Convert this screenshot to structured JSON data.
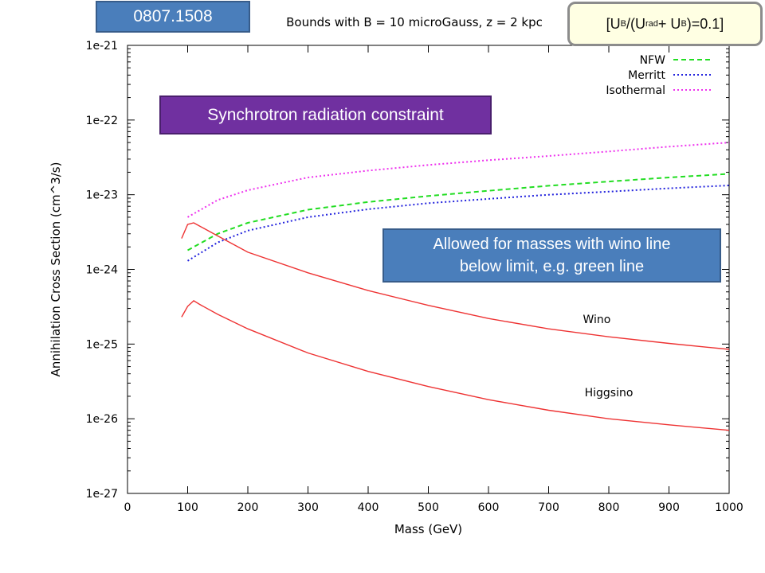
{
  "annotations": {
    "arxiv_id": "0807.1508",
    "energy_ratio": {
      "open": "[U",
      "sub_b": "B",
      "mid": " /(U",
      "sub_rad": "rad",
      "plus": " + U",
      "sub_b2": "B",
      "close": " )=0.1]"
    },
    "synchrotron_label": "Synchrotron radiation constraint",
    "allowed_line1": "Allowed for masses with wino line",
    "allowed_line2": "below limit, e.g. green line"
  },
  "chart_data": {
    "type": "line",
    "title": "Bounds with B = 10 microGauss, z = 2 kpc",
    "xlabel": "Mass (GeV)",
    "ylabel": "Annihilation Cross Section (cm^3/s)",
    "xlim": [
      0,
      1000
    ],
    "ylim": [
      1e-27,
      1e-21
    ],
    "yscale": "log",
    "grid": false,
    "legend_position": "top-right",
    "x_ticks": [
      0,
      100,
      200,
      300,
      400,
      500,
      600,
      700,
      800,
      900,
      1000
    ],
    "x_tick_labels": [
      "0",
      "100",
      "200",
      "300",
      "400",
      "500",
      "600",
      "700",
      "800",
      "900",
      "1000"
    ],
    "y_ticks": [
      1e-27,
      1e-26,
      1e-25,
      1e-24,
      1e-23,
      1e-22,
      1e-21
    ],
    "y_tick_labels": [
      "1e-27",
      "1e-26",
      "1e-25",
      "1e-24",
      "1e-23",
      "1e-22",
      "1e-21"
    ],
    "series": [
      {
        "name": "NFW",
        "color": "#22dd22",
        "dash": "dashed",
        "in_legend": true,
        "x": [
          100,
          150,
          200,
          300,
          400,
          500,
          600,
          700,
          800,
          900,
          1000
        ],
        "y": [
          1.8e-24,
          3e-24,
          4.2e-24,
          6.3e-24,
          8e-24,
          9.6e-24,
          1.13e-23,
          1.32e-23,
          1.5e-23,
          1.7e-23,
          1.9e-23
        ]
      },
      {
        "name": "Merritt",
        "color": "#2222dd",
        "dash": "dotted",
        "in_legend": true,
        "x": [
          100,
          150,
          200,
          300,
          400,
          500,
          600,
          700,
          800,
          900,
          1000
        ],
        "y": [
          1.3e-24,
          2.3e-24,
          3.3e-24,
          5e-24,
          6.4e-24,
          7.7e-24,
          8.8e-24,
          1e-23,
          1.1e-23,
          1.22e-23,
          1.33e-23
        ]
      },
      {
        "name": "Isothermal",
        "color": "#ee33ee",
        "dash": "dotted",
        "in_legend": true,
        "x": [
          100,
          150,
          200,
          300,
          400,
          500,
          600,
          700,
          800,
          900,
          1000
        ],
        "y": [
          5e-24,
          8.5e-24,
          1.15e-23,
          1.7e-23,
          2.1e-23,
          2.5e-23,
          2.9e-23,
          3.3e-23,
          3.8e-23,
          4.4e-23,
          5e-23
        ]
      },
      {
        "name": "Wino",
        "color": "#ee3333",
        "dash": "solid",
        "in_legend": false,
        "x": [
          90,
          100,
          110,
          120,
          150,
          200,
          300,
          400,
          500,
          600,
          700,
          800,
          900,
          1000
        ],
        "y": [
          2.6e-24,
          4e-24,
          4.2e-24,
          3.8e-24,
          2.8e-24,
          1.7e-24,
          9e-25,
          5.2e-25,
          3.3e-25,
          2.2e-25,
          1.6e-25,
          1.25e-25,
          1.02e-25,
          8.5e-26
        ]
      },
      {
        "name": "Higgsino",
        "color": "#ee3333",
        "dash": "solid",
        "in_legend": false,
        "x": [
          90,
          100,
          110,
          120,
          150,
          200,
          300,
          400,
          500,
          600,
          700,
          800,
          900,
          1000
        ],
        "y": [
          2.3e-25,
          3.2e-25,
          3.8e-25,
          3.4e-25,
          2.5e-25,
          1.6e-25,
          7.6e-26,
          4.3e-26,
          2.7e-26,
          1.8e-26,
          1.3e-26,
          1e-26,
          8.3e-27,
          7e-27
        ]
      }
    ],
    "curve_labels": [
      {
        "text": "Wino",
        "x": 780,
        "y": 1.9e-25
      },
      {
        "text": "Higgsino",
        "x": 800,
        "y": 2e-26
      }
    ]
  }
}
